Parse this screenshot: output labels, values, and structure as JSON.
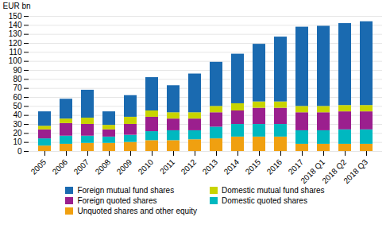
{
  "chart_data": {
    "type": "bar",
    "stacked": true,
    "categories": [
      "2005",
      "2006",
      "2007",
      "2008",
      "2009",
      "2010",
      "2011",
      "2012",
      "2013",
      "2014",
      "2015",
      "2016",
      "2017",
      "2018 Q1",
      "2018 Q2",
      "2018 Q3"
    ],
    "series": [
      {
        "name": "Unquoted shares and other equity",
        "color": "#f0a010",
        "values": [
          6,
          8,
          9,
          9,
          10,
          12,
          12,
          13,
          14,
          16,
          16,
          16,
          8,
          8,
          8,
          8
        ]
      },
      {
        "name": "Domestic quoted shares",
        "color": "#00b8c0",
        "values": [
          8,
          9,
          8,
          7,
          8,
          10,
          11,
          10,
          13,
          14,
          14,
          14,
          15,
          15,
          16,
          16
        ]
      },
      {
        "name": "Foreign quoted shares",
        "color": "#9b1f8e",
        "values": [
          10,
          14,
          13,
          8,
          12,
          16,
          13,
          13,
          16,
          15,
          18,
          18,
          20,
          20,
          20,
          20
        ]
      },
      {
        "name": "Domestic mutual fund shares",
        "color": "#c8d400",
        "values": [
          4,
          5,
          7,
          5,
          8,
          7,
          7,
          7,
          7,
          8,
          7,
          7,
          7,
          7,
          7,
          7
        ]
      },
      {
        "name": "Foreign mutual fund shares",
        "color": "#1a6ab0",
        "values": [
          16,
          22,
          31,
          15,
          24,
          37,
          30,
          43,
          49,
          55,
          64,
          72,
          88,
          89,
          91,
          93
        ]
      }
    ],
    "ylabel": "EUR bn",
    "ylim": [
      0,
      150
    ],
    "yticks": [
      0,
      10,
      20,
      30,
      40,
      50,
      60,
      70,
      80,
      90,
      100,
      110,
      120,
      130,
      140,
      150
    ],
    "grid": true,
    "legend": "bottom"
  }
}
